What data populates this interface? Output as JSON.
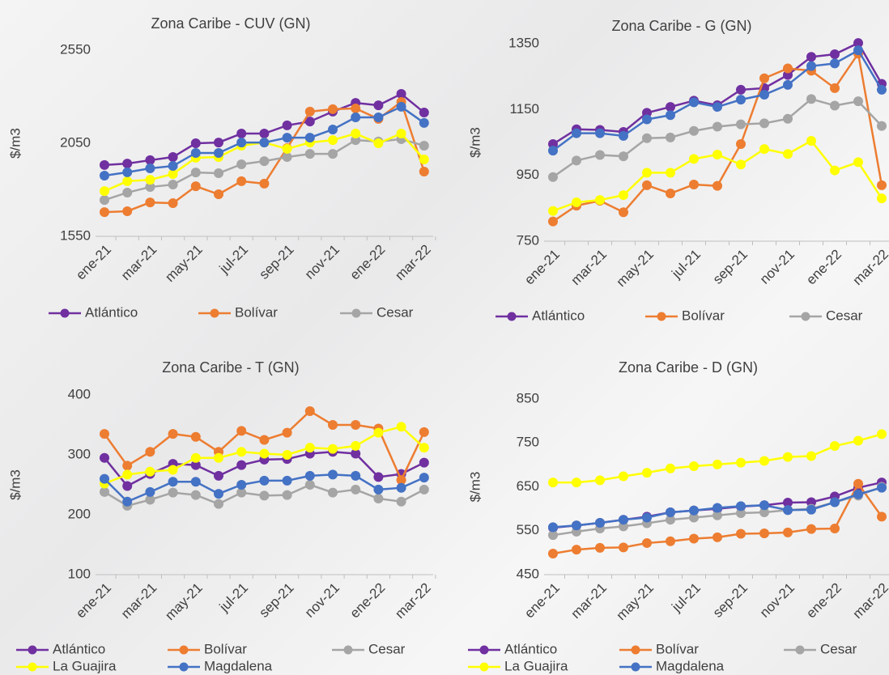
{
  "chart_data": [
    {
      "type": "line",
      "title": "Zona Caribe - CUV (GN)",
      "ylabel": "$/m3",
      "categories": [
        "ene-21",
        null,
        "mar-21",
        null,
        "may-21",
        null,
        "jul-21",
        null,
        "sep-21",
        null,
        "nov-21",
        null,
        "ene-22",
        null,
        "mar-22"
      ],
      "ylim": [
        1550,
        2550
      ],
      "yticks": [
        1550,
        2050,
        2550
      ],
      "series": [
        {
          "name": "Atlántico",
          "color": "#7030a0",
          "values": [
            1933,
            1941,
            1959,
            1976,
            2050,
            2054,
            2102,
            2102,
            2146,
            2167,
            2220,
            2267,
            2254,
            2315,
            2215
          ]
        },
        {
          "name": "Bolívar",
          "color": "#ed7d31",
          "values": [
            1680,
            1685,
            1732,
            1728,
            1819,
            1776,
            1846,
            1833,
            2024,
            2220,
            2233,
            2237,
            2181,
            2272,
            1898
          ]
        },
        {
          "name": "Cesar",
          "color": "#a5a5a5",
          "values": [
            1745,
            1785,
            1815,
            1828,
            1893,
            1889,
            1937,
            1954,
            1976,
            1993,
            1993,
            2067,
            2059,
            2072,
            2037
          ]
        },
        {
          "color": "#ffff00",
          "values": [
            1793,
            1846,
            1854,
            1885,
            1972,
            1976,
            2037,
            2054,
            2020,
            2054,
            2067,
            2102,
            2050,
            2102,
            1963
          ]
        },
        {
          "color": "#4472c4",
          "values": [
            1876,
            1894,
            1915,
            1928,
            1998,
            1998,
            2054,
            2054,
            2080,
            2080,
            2124,
            2189,
            2189,
            2246,
            2159
          ]
        }
      ]
    },
    {
      "type": "line",
      "title": "Zona Caribe - G (GN)",
      "ylabel": "$/m3",
      "categories": [
        "ene-21",
        null,
        "mar-21",
        null,
        "may-21",
        null,
        "jul-21",
        null,
        "sep-21",
        null,
        "nov-21",
        null,
        "ene-22",
        null,
        "mar-22"
      ],
      "ylim": [
        750,
        1350
      ],
      "yticks": [
        750,
        950,
        1150,
        1350
      ],
      "series": [
        {
          "name": "Atlántico",
          "color": "#7030a0",
          "values": [
            1045,
            1090,
            1088,
            1082,
            1140,
            1158,
            1177,
            1163,
            1210,
            1215,
            1255,
            1310,
            1318,
            1352,
            1228
          ]
        },
        {
          "name": "Bolívar",
          "color": "#ed7d31",
          "values": [
            810,
            858,
            873,
            838,
            920,
            895,
            922,
            918,
            1045,
            1245,
            1275,
            1268,
            1215,
            1320,
            920
          ]
        },
        {
          "name": "Cesar",
          "color": "#a5a5a5",
          "values": [
            945,
            995,
            1012,
            1008,
            1063,
            1065,
            1085,
            1098,
            1105,
            1108,
            1122,
            1182,
            1162,
            1175,
            1100
          ]
        },
        {
          "color": "#ffff00",
          "values": [
            842,
            868,
            875,
            890,
            958,
            958,
            1000,
            1013,
            983,
            1030,
            1015,
            1055,
            965,
            990,
            880
          ]
        },
        {
          "color": "#4472c4",
          "values": [
            1025,
            1078,
            1078,
            1070,
            1120,
            1133,
            1172,
            1158,
            1180,
            1195,
            1225,
            1282,
            1290,
            1330,
            1210
          ]
        }
      ]
    },
    {
      "type": "line",
      "title": "Zona Caribe - T (GN)",
      "ylabel": "$/m3",
      "categories": [
        "ene-21",
        null,
        "mar-21",
        null,
        "may-21",
        null,
        "jul-21",
        null,
        "sep-21",
        null,
        "nov-21",
        null,
        "ene-22",
        null,
        "mar-22"
      ],
      "ylim": [
        100,
        400
      ],
      "yticks": [
        100,
        200,
        300,
        400
      ],
      "series": [
        {
          "name": "Atlántico",
          "color": "#7030a0",
          "values": [
            295,
            248,
            268,
            285,
            283,
            265,
            283,
            292,
            293,
            302,
            305,
            302,
            263,
            268,
            287
          ]
        },
        {
          "name": "Bolívar",
          "color": "#ed7d31",
          "values": [
            335,
            282,
            305,
            335,
            330,
            305,
            340,
            325,
            337,
            373,
            350,
            350,
            344,
            258,
            338
          ]
        },
        {
          "name": "Cesar",
          "color": "#a5a5a5",
          "values": [
            238,
            215,
            225,
            237,
            233,
            218,
            237,
            232,
            233,
            250,
            237,
            242,
            227,
            222,
            242
          ]
        },
        {
          "name": "La Guajira",
          "color": "#ffff00",
          "values": [
            252,
            267,
            272,
            275,
            295,
            295,
            305,
            302,
            300,
            312,
            310,
            315,
            337,
            347,
            312
          ]
        },
        {
          "name": "Magdalena",
          "color": "#4472c4",
          "values": [
            260,
            222,
            238,
            255,
            255,
            235,
            250,
            257,
            257,
            265,
            267,
            265,
            242,
            245,
            262
          ]
        }
      ]
    },
    {
      "type": "line",
      "title": "Zona Caribe - D (GN)",
      "ylabel": "$/m3",
      "categories": [
        "ene-21",
        null,
        "mar-21",
        null,
        "may-21",
        null,
        "jul-21",
        null,
        "sep-21",
        null,
        "nov-21",
        null,
        "ene-22",
        null,
        "mar-22"
      ],
      "ylim": [
        450,
        850
      ],
      "yticks": [
        450,
        550,
        650,
        750,
        850
      ],
      "series": [
        {
          "name": "Atlántico",
          "color": "#7030a0",
          "values": [
            557,
            562,
            568,
            575,
            582,
            592,
            596,
            600,
            605,
            608,
            614,
            615,
            628,
            648,
            660
          ]
        },
        {
          "name": "Bolívar",
          "color": "#ed7d31",
          "values": [
            498,
            507,
            511,
            512,
            522,
            526,
            532,
            535,
            543,
            544,
            546,
            554,
            555,
            657,
            582
          ]
        },
        {
          "name": "Cesar",
          "color": "#a5a5a5",
          "values": [
            540,
            548,
            555,
            560,
            567,
            575,
            580,
            585,
            590,
            592,
            597,
            600,
            615,
            630,
            650
          ]
        },
        {
          "name": "La Guajira",
          "color": "#ffff00",
          "values": [
            660,
            660,
            665,
            674,
            682,
            692,
            697,
            701,
            705,
            709,
            718,
            720,
            743,
            755,
            770
          ]
        },
        {
          "name": "Magdalena",
          "color": "#4472c4",
          "values": [
            558,
            562,
            568,
            575,
            580,
            592,
            596,
            602,
            606,
            608,
            597,
            598,
            615,
            633,
            648
          ]
        }
      ]
    }
  ]
}
